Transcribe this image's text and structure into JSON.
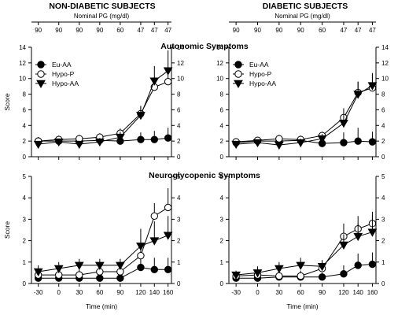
{
  "headings": [
    "NON-DIABETIC SUBJECTS",
    "DIABETIC SUBJECTS"
  ],
  "top_axis_label": "Nominal PG (mg/dl)",
  "top_axis_ticks": [
    "90",
    "90",
    "90",
    "90",
    "60",
    "47",
    "47",
    "47"
  ],
  "chart_data": [
    {
      "type": "line",
      "title": "Autonomic Symptoms",
      "heading": "NON-DIABETIC SUBJECTS",
      "xlabel": "",
      "ylabel": "Score",
      "ylim": [
        0,
        14
      ],
      "x": [
        -30,
        0,
        30,
        60,
        90,
        120,
        140,
        160
      ],
      "legend": "top-left",
      "series": [
        {
          "name": "Eu-AA",
          "marker": "circle-filled",
          "values": [
            2.0,
            2.0,
            2.0,
            2.1,
            2.0,
            2.2,
            2.2,
            2.4
          ],
          "err": [
            0.5,
            0.5,
            0.5,
            0.5,
            0.5,
            0.9,
            1.1,
            1.3
          ]
        },
        {
          "name": "Hypo-P",
          "marker": "circle-open",
          "values": [
            2.0,
            2.2,
            2.3,
            2.5,
            3.0,
            5.5,
            8.9,
            9.6
          ],
          "err": [
            0.5,
            0.5,
            0.5,
            0.5,
            0.6,
            1.0,
            1.3,
            1.7
          ]
        },
        {
          "name": "Hypo-AA",
          "marker": "triangle-down",
          "values": [
            1.6,
            1.9,
            1.6,
            1.9,
            2.5,
            5.3,
            9.7,
            11.0
          ],
          "err": [
            0.4,
            0.4,
            0.4,
            0.5,
            0.7,
            1.1,
            1.9,
            2.6
          ]
        }
      ]
    },
    {
      "type": "line",
      "title": "",
      "heading": "DIABETIC SUBJECTS",
      "xlabel": "",
      "ylabel": "",
      "ylim": [
        0,
        14
      ],
      "x": [
        -30,
        0,
        30,
        60,
        90,
        120,
        140,
        160
      ],
      "legend": "top-left",
      "series": [
        {
          "name": "Eu-AA",
          "marker": "circle-filled",
          "values": [
            1.8,
            2.0,
            2.0,
            2.1,
            1.7,
            1.8,
            2.0,
            1.9
          ],
          "err": [
            0.4,
            0.4,
            0.4,
            0.4,
            0.4,
            1.3,
            1.7,
            1.3
          ]
        },
        {
          "name": "Hypo-P",
          "marker": "circle-open",
          "values": [
            1.9,
            2.1,
            2.3,
            2.2,
            2.7,
            5.0,
            8.2,
            8.8
          ],
          "err": [
            0.4,
            0.4,
            0.5,
            0.5,
            0.5,
            1.2,
            1.4,
            1.8
          ]
        },
        {
          "name": "Hypo-AA",
          "marker": "triangle-down",
          "values": [
            1.6,
            1.8,
            1.5,
            1.8,
            2.3,
            4.3,
            8.0,
            9.1
          ],
          "err": [
            0.4,
            0.4,
            0.4,
            0.5,
            0.6,
            1.2,
            1.6,
            1.6
          ]
        }
      ]
    },
    {
      "type": "line",
      "title": "Neuroglycopenic Symptoms",
      "heading": "NON-DIABETIC SUBJECTS",
      "xlabel": "Time (min)",
      "ylabel": "Score",
      "ylim": [
        0,
        5
      ],
      "x": [
        -30,
        0,
        30,
        60,
        90,
        120,
        140,
        160
      ],
      "series": [
        {
          "name": "Eu-AA",
          "marker": "circle-filled",
          "values": [
            0.25,
            0.25,
            0.25,
            0.25,
            0.25,
            0.75,
            0.65,
            0.65
          ],
          "err": [
            0.25,
            0.25,
            0.25,
            0.25,
            0.25,
            0.5,
            0.55,
            0.55
          ]
        },
        {
          "name": "Hypo-P",
          "marker": "circle-open",
          "values": [
            0.4,
            0.4,
            0.4,
            0.55,
            0.55,
            1.3,
            3.15,
            3.55
          ],
          "err": [
            0.25,
            0.25,
            0.25,
            0.3,
            0.3,
            0.45,
            0.6,
            0.9
          ]
        },
        {
          "name": "Hypo-AA",
          "marker": "triangle-down",
          "values": [
            0.55,
            0.7,
            0.85,
            0.85,
            0.85,
            1.75,
            2.0,
            2.25
          ],
          "err": [
            0.3,
            0.3,
            0.3,
            0.3,
            0.3,
            0.8,
            0.9,
            0.9
          ]
        }
      ]
    },
    {
      "type": "line",
      "title": "",
      "heading": "DIABETIC SUBJECTS",
      "xlabel": "Time (min)",
      "ylabel": "",
      "ylim": [
        0,
        5
      ],
      "x": [
        -30,
        0,
        30,
        60,
        90,
        120,
        140,
        160
      ],
      "series": [
        {
          "name": "Eu-AA",
          "marker": "circle-filled",
          "values": [
            0.25,
            0.25,
            0.3,
            0.3,
            0.3,
            0.45,
            0.85,
            0.9
          ],
          "err": [
            0.2,
            0.2,
            0.2,
            0.2,
            0.2,
            0.4,
            0.55,
            0.55
          ]
        },
        {
          "name": "Hypo-P",
          "marker": "circle-open",
          "values": [
            0.35,
            0.4,
            0.35,
            0.35,
            0.7,
            2.2,
            2.55,
            2.8
          ],
          "err": [
            0.2,
            0.2,
            0.25,
            0.25,
            0.3,
            0.6,
            0.6,
            0.55
          ]
        },
        {
          "name": "Hypo-AA",
          "marker": "triangle-down",
          "values": [
            0.4,
            0.5,
            0.7,
            0.85,
            0.8,
            1.8,
            2.2,
            2.4
          ],
          "err": [
            0.2,
            0.3,
            0.3,
            0.35,
            0.3,
            0.5,
            0.6,
            0.8
          ]
        }
      ]
    }
  ]
}
